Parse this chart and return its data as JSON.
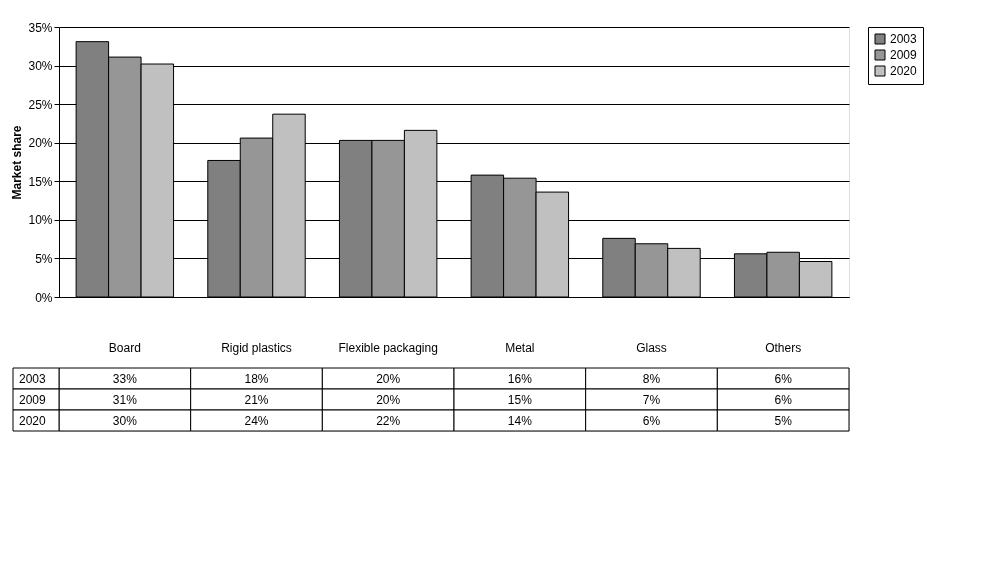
{
  "chart_data": {
    "type": "bar",
    "ylabel": "Market share",
    "categories": [
      "Board",
      "Rigid plastics",
      "Flexible packaging",
      "Metal",
      "Glass",
      "Others"
    ],
    "series": [
      {
        "name": "2003",
        "color": "#808080",
        "values": [
          33.1,
          17.7,
          20.3,
          15.8,
          7.6,
          5.6
        ],
        "value_labels": [
          "33%",
          "18%",
          "20%",
          "16%",
          "8%",
          "6%"
        ]
      },
      {
        "name": "2009",
        "color": "#969696",
        "values": [
          31.1,
          20.6,
          20.3,
          15.4,
          6.9,
          5.8
        ],
        "value_labels": [
          "31%",
          "21%",
          "20%",
          "15%",
          "7%",
          "6%"
        ]
      },
      {
        "name": "2020",
        "color": "#c0c0c0",
        "values": [
          30.2,
          23.7,
          21.6,
          13.6,
          6.3,
          4.6
        ],
        "value_labels": [
          "30%",
          "24%",
          "22%",
          "14%",
          "6%",
          "5%"
        ]
      }
    ],
    "ylim": [
      0,
      35
    ],
    "yticks": [
      {
        "value": 0,
        "label": "0%"
      },
      {
        "value": 5,
        "label": "5%"
      },
      {
        "value": 10,
        "label": "10%"
      },
      {
        "value": 15,
        "label": "15%"
      },
      {
        "value": 20,
        "label": "20%"
      },
      {
        "value": 25,
        "label": "25%"
      },
      {
        "value": 30,
        "label": "30%"
      },
      {
        "value": 35,
        "label": "35%"
      }
    ],
    "grid": "y",
    "legend": "right"
  }
}
